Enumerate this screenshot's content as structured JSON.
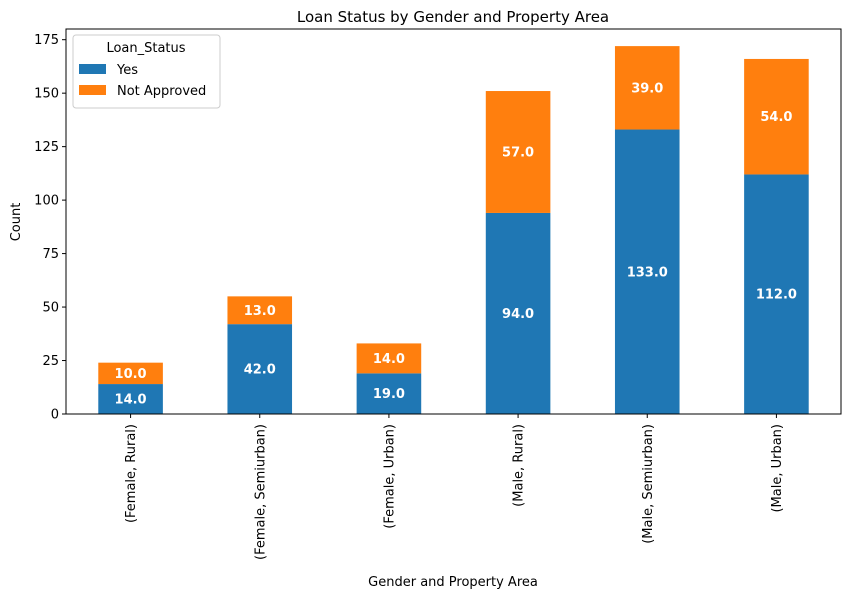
{
  "chart_data": {
    "type": "bar",
    "stacked": true,
    "title": "Loan Status by Gender and Property Area",
    "xlabel": "Gender and Property Area",
    "ylabel": "Count",
    "ylim": [
      0,
      180
    ],
    "yticks": [
      0,
      25,
      50,
      75,
      100,
      125,
      150,
      175
    ],
    "categories": [
      "(Female, Rural)",
      "(Female, Semiurban)",
      "(Female, Urban)",
      "(Male, Rural)",
      "(Male, Semiurban)",
      "(Male, Urban)"
    ],
    "legend_title": "Loan_Status",
    "legend_position": "top-left",
    "series": [
      {
        "name": "Yes",
        "color": "#1f77b4",
        "values": [
          14.0,
          42.0,
          19.0,
          94.0,
          133.0,
          112.0
        ],
        "labels": [
          "14.0",
          "42.0",
          "19.0",
          "94.0",
          "133.0",
          "112.0"
        ]
      },
      {
        "name": "Not Approved",
        "color": "#ff7f0e",
        "values": [
          10.0,
          13.0,
          14.0,
          57.0,
          39.0,
          54.0
        ],
        "labels": [
          "10.0",
          "13.0",
          "14.0",
          "57.0",
          "39.0",
          "54.0"
        ]
      }
    ]
  }
}
